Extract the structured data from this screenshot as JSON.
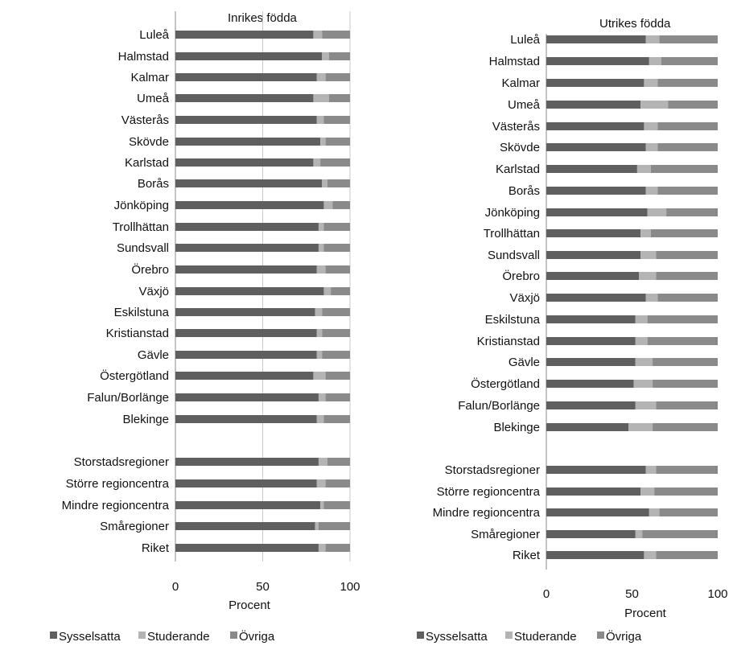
{
  "chart_data": [
    {
      "type": "bar",
      "orientation": "horizontal",
      "stacked": true,
      "title": "Inrikes födda",
      "xlabel": "Procent",
      "xlim": [
        0,
        100
      ],
      "xticks": [
        "0",
        "50",
        "100"
      ],
      "categories": [
        "Luleå",
        "Halmstad",
        "Kalmar",
        "Umeå",
        "Västerås",
        "Skövde",
        "Karlstad",
        "Borås",
        "Jönköping",
        "Trollhättan",
        "Sundsvall",
        "Örebro",
        "Växjö",
        "Eskilstuna",
        "Kristianstad",
        "Gävle",
        "Östergötland",
        "Falun/Borlänge",
        "Blekinge",
        "Storstadsregioner",
        "Större regioncentra",
        "Mindre regioncentra",
        "Småregioner",
        "Riket"
      ],
      "series": [
        {
          "name": "Sysselsatta",
          "values": [
            79,
            84,
            81,
            79,
            81,
            83,
            79,
            84,
            85,
            82,
            82,
            81,
            85,
            80,
            81,
            81,
            79,
            82,
            81,
            82,
            81,
            83,
            80,
            82
          ]
        },
        {
          "name": "Studerande",
          "values": [
            5,
            4,
            5,
            9,
            4,
            3,
            4,
            3,
            5,
            3,
            3,
            5,
            4,
            4,
            3,
            3,
            7,
            4,
            4,
            5,
            5,
            2,
            2,
            4
          ]
        },
        {
          "name": "Övriga",
          "values": [
            16,
            12,
            14,
            12,
            15,
            14,
            17,
            13,
            10,
            15,
            15,
            14,
            11,
            16,
            16,
            16,
            14,
            14,
            15,
            13,
            14,
            15,
            18,
            14
          ]
        }
      ],
      "legend_position": "bottom",
      "grid": "vertical"
    },
    {
      "type": "bar",
      "orientation": "horizontal",
      "stacked": true,
      "title": "Utrikes födda",
      "xlabel": "Procent",
      "xlim": [
        0,
        100
      ],
      "xticks": [
        "0",
        "50",
        "100"
      ],
      "categories": [
        "Luleå",
        "Halmstad",
        "Kalmar",
        "Umeå",
        "Västerås",
        "Skövde",
        "Karlstad",
        "Borås",
        "Jönköping",
        "Trollhättan",
        "Sundsvall",
        "Örebro",
        "Växjö",
        "Eskilstuna",
        "Kristianstad",
        "Gävle",
        "Östergötland",
        "Falun/Borlänge",
        "Blekinge",
        "Storstadsregioner",
        "Större regioncentra",
        "Mindre regioncentra",
        "Småregioner",
        "Riket"
      ],
      "series": [
        {
          "name": "Sysselsatta",
          "values": [
            58,
            60,
            57,
            55,
            57,
            58,
            53,
            58,
            59,
            55,
            55,
            54,
            58,
            52,
            52,
            52,
            51,
            52,
            48,
            58,
            55,
            60,
            52,
            57
          ]
        },
        {
          "name": "Studerande",
          "values": [
            8,
            7,
            8,
            16,
            8,
            7,
            8,
            7,
            11,
            6,
            9,
            10,
            7,
            7,
            7,
            10,
            11,
            12,
            14,
            6,
            8,
            6,
            4,
            7
          ]
        },
        {
          "name": "Övriga",
          "values": [
            34,
            33,
            35,
            29,
            35,
            35,
            39,
            35,
            30,
            39,
            36,
            36,
            35,
            41,
            41,
            38,
            38,
            36,
            38,
            36,
            37,
            34,
            44,
            36
          ]
        }
      ],
      "legend_position": "bottom",
      "grid": "none"
    }
  ],
  "colors": {
    "Sysselsatta": "#5f5f5f",
    "Studerande": "#b4b4b4",
    "Övriga": "#8a8a8a"
  }
}
